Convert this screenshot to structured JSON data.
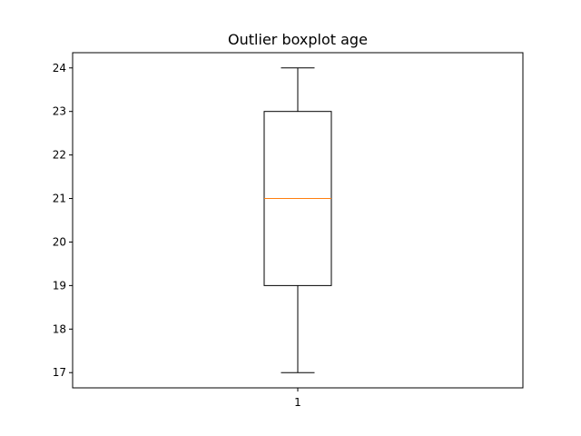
{
  "chart_data": {
    "type": "boxplot",
    "title": "Outlier boxplot age",
    "xlabel": "",
    "ylabel": "",
    "categories": [
      "1"
    ],
    "ylim": [
      16.65,
      24.35
    ],
    "yticks": [
      17,
      18,
      19,
      20,
      21,
      22,
      23,
      24
    ],
    "boxes": [
      {
        "label": "1",
        "whisker_low": 17,
        "q1": 19,
        "median": 21,
        "q3": 23,
        "whisker_high": 24
      }
    ],
    "grid": false,
    "legend": "none",
    "colors": {
      "box": "#000000",
      "median": "#ff7f0e",
      "axes": "#000000"
    }
  }
}
